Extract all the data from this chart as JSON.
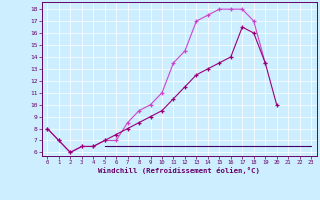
{
  "xlabel": "Windchill (Refroidissement éolien,°C)",
  "background_color": "#cceeff",
  "grid_color": "#ffffff",
  "line_color_1": "#cc44cc",
  "line_color_2": "#990077",
  "line_color_3": "#440066",
  "spine_color": "#660066",
  "tick_color": "#660066",
  "xlabel_color": "#660066",
  "xlim": [
    -0.5,
    23.5
  ],
  "ylim": [
    5.7,
    18.6
  ],
  "yticks": [
    6,
    7,
    8,
    9,
    10,
    11,
    12,
    13,
    14,
    15,
    16,
    17,
    18
  ],
  "xticks": [
    0,
    1,
    2,
    3,
    4,
    5,
    6,
    7,
    8,
    9,
    10,
    11,
    12,
    13,
    14,
    15,
    16,
    17,
    18,
    19,
    20,
    21,
    22,
    23
  ],
  "series1_x": [
    0,
    1,
    2,
    3,
    4,
    5,
    6,
    7,
    8,
    9,
    10,
    11,
    12,
    13,
    14,
    15,
    16,
    17,
    18,
    19
  ],
  "series1_y": [
    8.0,
    7.0,
    6.0,
    6.5,
    6.5,
    7.0,
    7.0,
    8.5,
    9.5,
    10.0,
    11.0,
    13.5,
    14.5,
    17.0,
    17.5,
    18.0,
    18.0,
    18.0,
    17.0,
    13.5
  ],
  "series2_x": [
    0,
    1,
    2,
    3,
    4,
    5,
    6,
    7,
    8,
    9,
    10,
    11,
    12,
    13,
    14,
    15,
    16,
    17,
    18,
    19,
    20
  ],
  "series2_y": [
    8.0,
    7.0,
    6.0,
    6.5,
    6.5,
    7.0,
    7.5,
    8.0,
    8.5,
    9.0,
    9.5,
    10.5,
    11.5,
    12.5,
    13.0,
    13.5,
    14.0,
    16.5,
    16.0,
    13.5,
    10.0
  ],
  "series3_x": [
    5,
    6,
    7,
    8,
    9,
    10,
    11,
    12,
    13,
    14,
    15,
    16,
    17,
    18,
    19,
    20,
    21,
    22,
    23
  ],
  "series3_y": [
    6.5,
    6.5,
    6.5,
    6.5,
    6.5,
    6.5,
    6.5,
    6.5,
    6.5,
    6.5,
    6.5,
    6.5,
    6.5,
    6.5,
    6.5,
    6.5,
    6.5,
    6.5,
    6.5
  ]
}
